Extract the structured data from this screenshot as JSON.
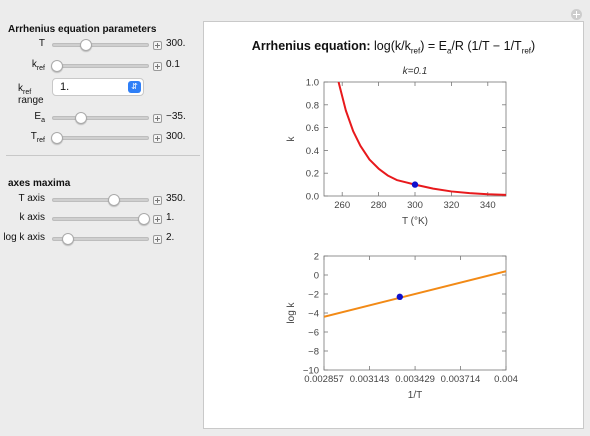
{
  "params": {
    "title": "Arrhenius equation parameters",
    "T": {
      "label": "T",
      "value": "300.",
      "level": 0.35
    },
    "kref": {
      "label": "k",
      "sub": "ref",
      "value": "0.1",
      "level": 0.0
    },
    "kref_range": {
      "label": "k",
      "sub": "ref",
      "line2": "range",
      "selected": "1."
    },
    "Ea": {
      "label": "E",
      "sub": "a",
      "value": "−35.",
      "level": 0.3
    },
    "Tref": {
      "label": "T",
      "sub": "ref",
      "value": "300.",
      "level": 0.0
    }
  },
  "axes": {
    "title": "axes maxima",
    "T_axis": {
      "label": "T axis",
      "value": "350.",
      "level": 0.65
    },
    "k_axis": {
      "label": "k axis",
      "value": "1.",
      "level": 1.0
    },
    "logk_axis": {
      "label": "log k axis",
      "value": "2.",
      "level": 0.15
    }
  },
  "plot": {
    "title_prefix": "Arrhenius equation: ",
    "title_equation": "log(k/k",
    "title_sub1": "ref",
    "title_mid": ") = E",
    "title_sub2": "a",
    "title_end": "/R (1/T − 1/T",
    "title_sub3": "ref",
    "title_close": ")"
  },
  "chart_data": [
    {
      "type": "line",
      "title": "k=0.1",
      "xlabel": "T (°K)",
      "ylabel": "k",
      "xlim": [
        250,
        350
      ],
      "ylim": [
        0,
        1.0
      ],
      "x_ticks": [
        "260",
        "280",
        "300",
        "320",
        "340"
      ],
      "y_ticks": [
        "0.0",
        "0.2",
        "0.4",
        "0.6",
        "0.8",
        "1.0"
      ],
      "curve_color": "#e8191c",
      "series": [
        {
          "x": [
            258,
            262,
            266,
            270,
            275,
            280,
            285,
            290,
            295,
            300,
            310,
            320,
            330,
            340,
            350
          ],
          "y": [
            1.0,
            0.75,
            0.57,
            0.44,
            0.32,
            0.24,
            0.18,
            0.14,
            0.12,
            0.1,
            0.065,
            0.04,
            0.025,
            0.015,
            0.01
          ]
        }
      ],
      "point": {
        "x": 300,
        "y": 0.1,
        "color": "#1010cc"
      }
    },
    {
      "type": "line",
      "title": "",
      "xlabel": "1/T",
      "ylabel": "log k",
      "xlim": [
        0.002857,
        0.004
      ],
      "ylim": [
        -10,
        2
      ],
      "x_ticks": [
        "0.002857",
        "0.003143",
        "0.003429",
        "0.003714",
        "0.004"
      ],
      "y_ticks": [
        "2",
        "0",
        "−2",
        "−4",
        "−6",
        "−8",
        "−10"
      ],
      "curve_color": "#f28a16",
      "series": [
        {
          "x": [
            0.002857,
            0.004
          ],
          "y": [
            -4.4,
            0.4
          ]
        }
      ],
      "point": {
        "x": 0.003333,
        "y": -2.3,
        "color": "#1010cc"
      }
    }
  ]
}
